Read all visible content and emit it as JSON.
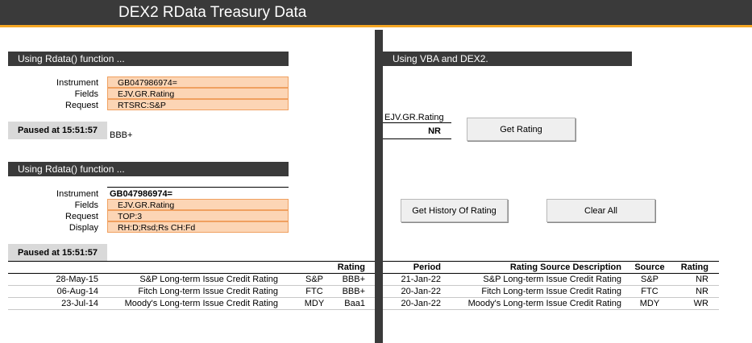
{
  "app": {
    "title": "DEX2 RData Treasury Data"
  },
  "section1": {
    "header": "Using Rdata() function ...",
    "instrument_label": "Instrument",
    "fields_label": "Fields",
    "request_label": "Request",
    "instrument": "GB047986974=",
    "fields": "EJV.GR.Rating",
    "request": "RTSRC:S&P",
    "paused": "Paused at 15:51:57",
    "result": "BBB+"
  },
  "section_vba": {
    "header": "Using VBA and DEX2.",
    "field_label": "EJV.GR.Rating",
    "value": "NR",
    "get_rating_button": "Get Rating",
    "get_history_button": "Get History Of Rating",
    "clear_all_button": "Clear All"
  },
  "section2": {
    "header": "Using Rdata() function ...",
    "instrument_label": "Instrument",
    "fields_label": "Fields",
    "request_label": "Request",
    "display_label": "Display",
    "instrument": "GB047986974=",
    "fields": "EJV.GR.Rating",
    "request": "TOP:3",
    "display": "RH:D;Rsd;Rs CH:Fd",
    "paused": "Paused at 15:51:57"
  },
  "table_left": {
    "headers": {
      "rating": "Rating"
    },
    "rows": [
      {
        "date": "28-May-15",
        "desc": "S&P Long-term Issue Credit Rating",
        "src": "S&P",
        "rating": "BBB+"
      },
      {
        "date": "06-Aug-14",
        "desc": "Fitch Long-term Issue Credit Rating",
        "src": "FTC",
        "rating": "BBB+"
      },
      {
        "date": "23-Jul-14",
        "desc": "Moody's Long-term Issue Credit Rating",
        "src": "MDY",
        "rating": "Baa1"
      }
    ]
  },
  "table_right": {
    "headers": {
      "period": "Period",
      "desc": "Rating Source Description",
      "source": "Source",
      "rating": "Rating"
    },
    "rows": [
      {
        "period": "21-Jan-22",
        "desc": "S&P Long-term Issue Credit Rating",
        "source": "S&P",
        "rating": "NR"
      },
      {
        "period": "20-Jan-22",
        "desc": "Fitch Long-term Issue Credit Rating",
        "source": "FTC",
        "rating": "NR"
      },
      {
        "period": "20-Jan-22",
        "desc": "Moody's Long-term Issue Credit Rating",
        "source": "MDY",
        "rating": "WR"
      }
    ]
  },
  "colors": {
    "title_bg": "#3a3a3a",
    "accent": "#f5a623",
    "input_bg": "#fcd5b5",
    "paused_bg": "#d9d9d9"
  }
}
